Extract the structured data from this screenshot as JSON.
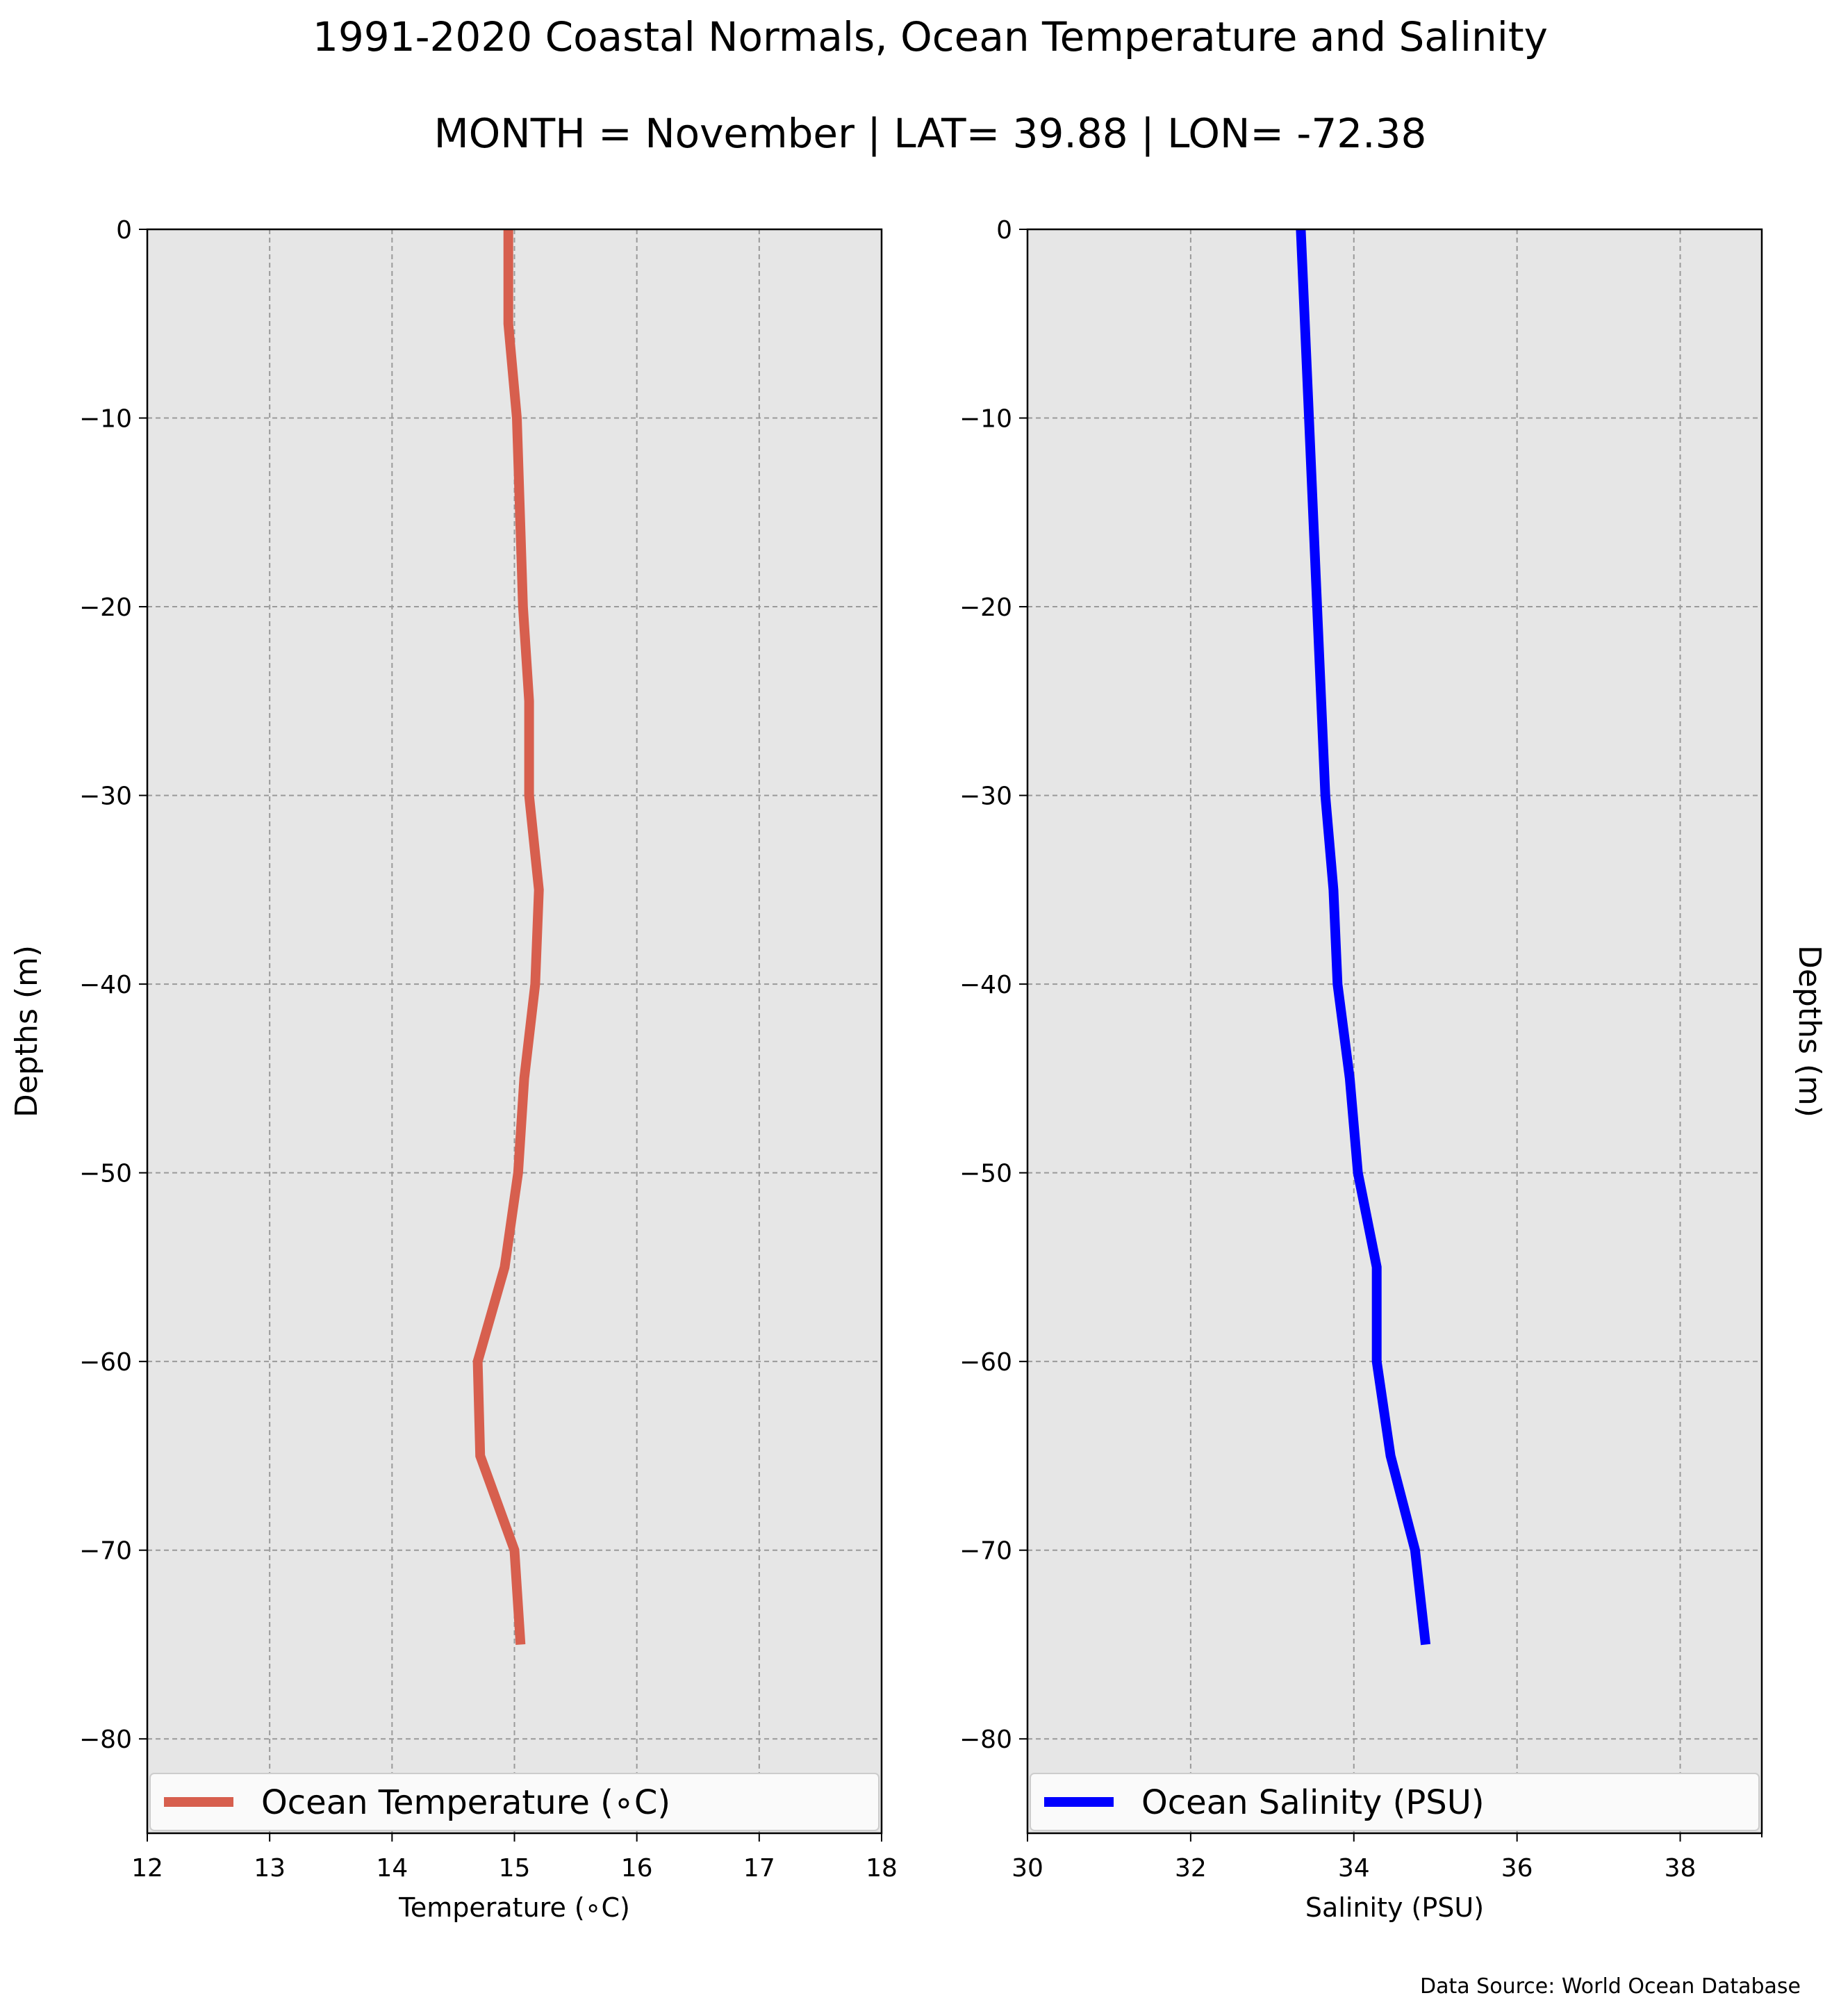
{
  "title": "1991-2020 Coastal Normals, Ocean Temperature and Salinity",
  "subtitle": "MONTH = November | LAT= 39.88 | LON= -72.38",
  "footer": "Data Source: World Ocean Database",
  "chart_data": [
    {
      "type": "line",
      "xlabel": "Temperature (∘C)",
      "ylabel": "Depths (m)",
      "xlim": [
        12,
        18
      ],
      "ylim": [
        -85,
        0
      ],
      "xticks": [
        "12",
        "13",
        "14",
        "15",
        "16",
        "17",
        "18"
      ],
      "yticks": [
        "0",
        "−10",
        "−20",
        "−30",
        "−40",
        "−50",
        "−60",
        "−70",
        "−80"
      ],
      "grid": true,
      "legend": "lower-center",
      "series": [
        {
          "name": "Ocean Temperature (∘C)",
          "color": "#d75f4e",
          "points": [
            [
              14.95,
              0
            ],
            [
              14.95,
              -5
            ],
            [
              15.02,
              -10
            ],
            [
              15.07,
              -20
            ],
            [
              15.12,
              -25
            ],
            [
              15.12,
              -30
            ],
            [
              15.2,
              -35
            ],
            [
              15.17,
              -40
            ],
            [
              15.08,
              -45
            ],
            [
              15.03,
              -50
            ],
            [
              14.92,
              -55
            ],
            [
              14.7,
              -60
            ],
            [
              14.72,
              -65
            ],
            [
              15.0,
              -70
            ],
            [
              15.05,
              -75
            ]
          ]
        }
      ]
    },
    {
      "type": "line",
      "xlabel": "Salinity (PSU)",
      "ylabel": "Depths (m)",
      "xlim": [
        30,
        39
      ],
      "ylim": [
        -85,
        0
      ],
      "xticks": [
        "30",
        "32",
        "34",
        "36",
        "38"
      ],
      "yticks": [
        "0",
        "−10",
        "−20",
        "−30",
        "−40",
        "−50",
        "−60",
        "−70",
        "−80"
      ],
      "grid": true,
      "legend": "lower-center",
      "series": [
        {
          "name": "Ocean Salinity (PSU)",
          "color": "#0000ff",
          "points": [
            [
              33.35,
              0
            ],
            [
              33.45,
              -10
            ],
            [
              33.55,
              -20
            ],
            [
              33.6,
              -25
            ],
            [
              33.65,
              -30
            ],
            [
              33.75,
              -35
            ],
            [
              33.8,
              -40
            ],
            [
              33.95,
              -45
            ],
            [
              34.05,
              -50
            ],
            [
              34.28,
              -55
            ],
            [
              34.28,
              -60
            ],
            [
              34.45,
              -65
            ],
            [
              34.75,
              -70
            ],
            [
              34.88,
              -75
            ]
          ]
        }
      ]
    }
  ]
}
